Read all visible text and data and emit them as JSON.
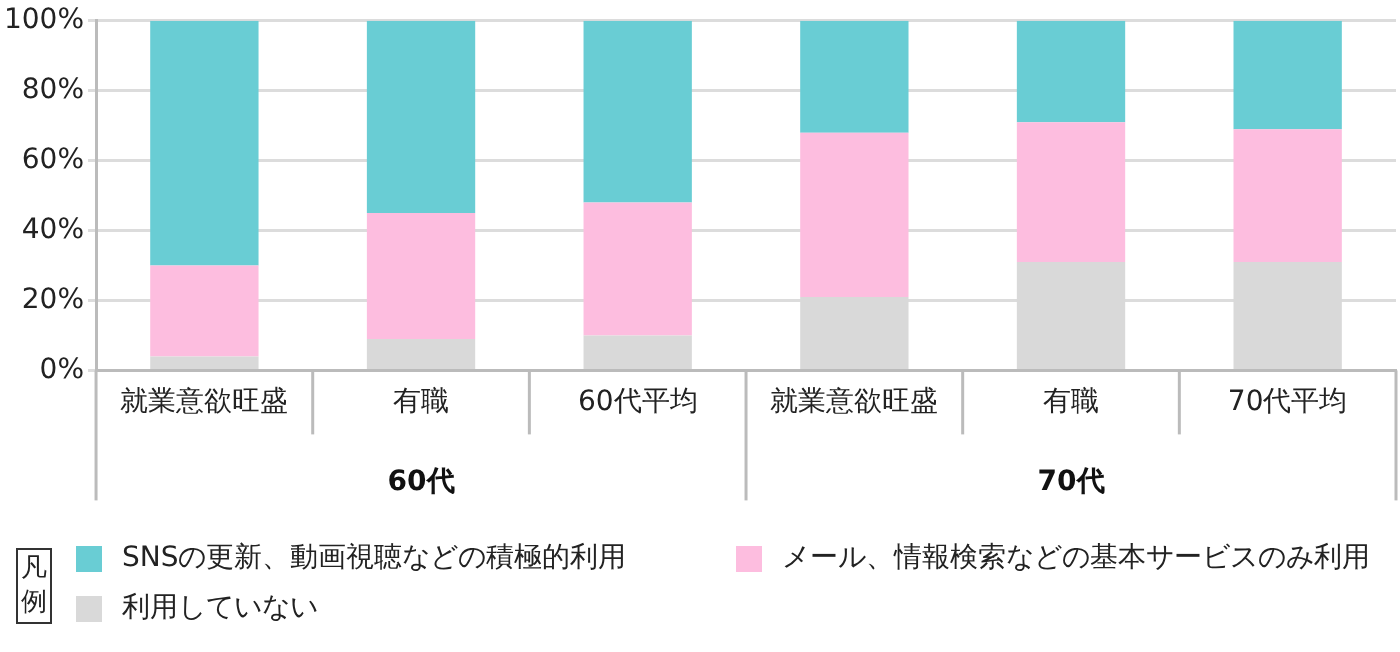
{
  "chart_data": {
    "type": "bar",
    "stacked": true,
    "categories": [
      "就業意欲旺盛",
      "有職",
      "60代平均",
      "就業意欲旺盛",
      "有職",
      "70代平均"
    ],
    "series": [
      {
        "name": "利用していない",
        "color": "#d9d9d9",
        "values": [
          4,
          9,
          10,
          21,
          31,
          31
        ]
      },
      {
        "name": "メール、情報検索などの基本サービスのみ利用",
        "color": "#fdbddf",
        "values": [
          26,
          36,
          38,
          47,
          40,
          38
        ]
      },
      {
        "name": "SNSの更新、動画視聴などの積極的利用",
        "color": "#69cdd4",
        "values": [
          70,
          55,
          52,
          32,
          29,
          31
        ]
      }
    ],
    "ylim": [
      0,
      100
    ],
    "yticks": [
      {
        "value": 0,
        "label": "0%"
      },
      {
        "value": 20,
        "label": "20%"
      },
      {
        "value": 40,
        "label": "40%"
      },
      {
        "value": 60,
        "label": "60%"
      },
      {
        "value": 80,
        "label": "80%"
      },
      {
        "value": 100,
        "label": "100%"
      }
    ],
    "grid": "y",
    "legend": "bottom left",
    "legend_title": "凡例",
    "annotations": [
      "60代",
      "70代"
    ]
  }
}
